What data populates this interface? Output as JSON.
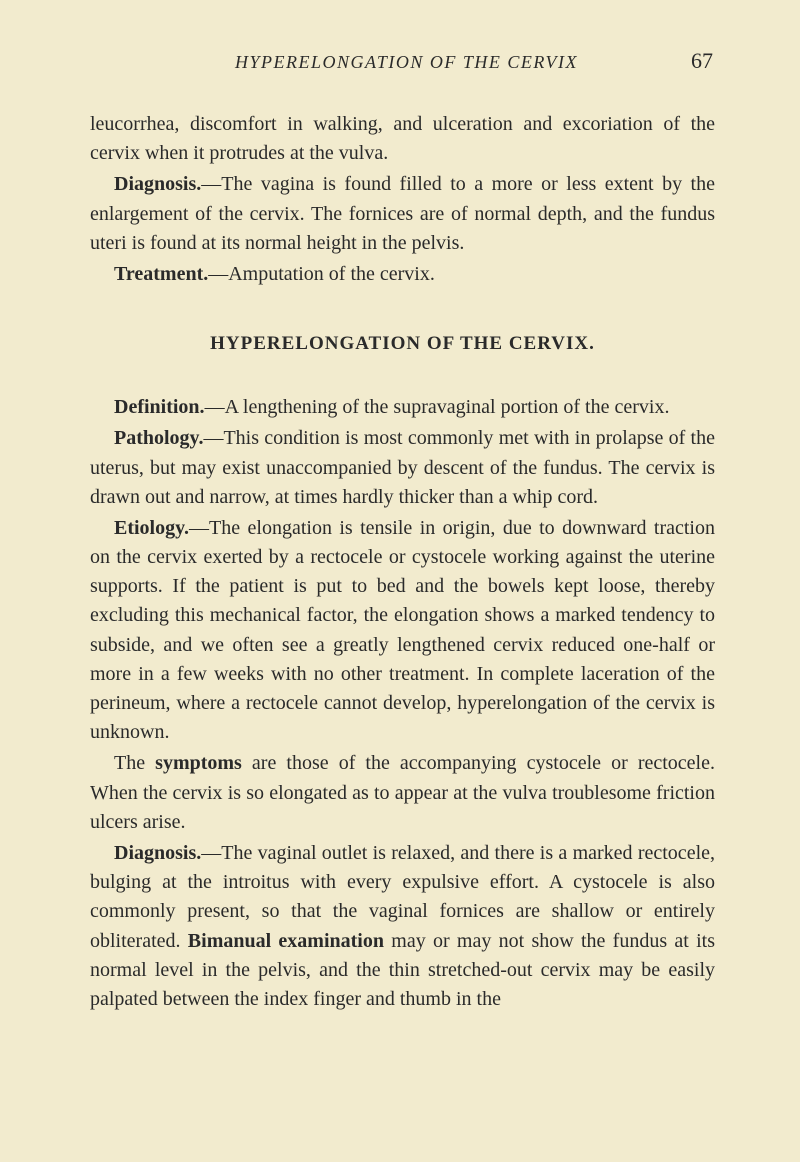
{
  "header": {
    "running_title": "HYPERELONGATION OF THE CERVIX",
    "page_number": "67"
  },
  "para1": "leucorrhea, discomfort in walking, and ulceration and excoriation of the cervix when it protrudes at the vulva.",
  "para2_label": "Diagnosis.",
  "para2_text": "—The vagina is found filled to a more or less extent by the enlargement of the cervix. The fornices are of normal depth, and the fundus uteri is found at its normal height in the pelvis.",
  "para3_label": "Treatment.",
  "para3_text": "—Amputation of the cervix.",
  "section_title": "HYPERELONGATION OF THE CERVIX.",
  "para4_label": "Definition.",
  "para4_text": "—A lengthening of the supravaginal portion of the cervix.",
  "para5_label": "Pathology.",
  "para5_text": "—This condition is most commonly met with in prolapse of the uterus, but may exist unaccompanied by descent of the fundus. The cervix is drawn out and narrow, at times hardly thicker than a whip cord.",
  "para6_label": "Etiology.",
  "para6_text": "—The elongation is tensile in origin, due to downward traction on the cervix exerted by a rectocele or cystocele working against the uterine supports. If the patient is put to bed and the bowels kept loose, thereby excluding this mechanical factor, the elongation shows a marked tendency to subside, and we often see a greatly lengthened cervix reduced one-half or more in a few weeks with no other treatment. In complete laceration of the perineum, where a rectocele cannot develop, hyperelongation of the cervix is unknown.",
  "para7_pre": "The ",
  "para7_label": "symptoms",
  "para7_text": " are those of the accompanying cystocele or rectocele. When the cervix is so elongated as to appear at the vulva troublesome friction ulcers arise.",
  "para8_label": "Diagnosis.",
  "para8_text": "—The vaginal outlet is relaxed, and there is a marked rectocele, bulging at the introitus with every expulsive effort. A cystocele is also commonly present, so that the vaginal fornices are shallow or entirely obliterated. ",
  "para8_label2": "Bimanual examination",
  "para8_text2": " may or may not show the fundus at its normal level in the pelvis, and the thin stretched-out cervix may be easily palpated between the index finger and thumb in the"
}
